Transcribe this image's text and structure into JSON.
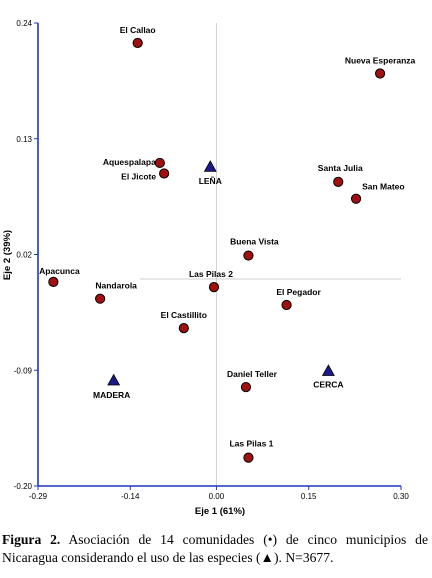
{
  "chart_data": {
    "type": "scatter",
    "xlabel": "Eje 1 (61%)",
    "ylabel": "Eje 2 (39%)",
    "xlim": [
      -0.29,
      0.3
    ],
    "ylim": [
      -0.2,
      0.24
    ],
    "xticks": [
      "-0.29",
      "-0.14",
      "0.00",
      "0.15",
      "0.30"
    ],
    "yticks": [
      "0.24",
      "0.13",
      "0.02",
      "-0.09",
      "-0.20"
    ],
    "series": [
      {
        "marker": "circle",
        "color": "#a01010",
        "points": [
          {
            "label": "El Callao",
            "x": -0.128,
            "y": 0.221
          },
          {
            "label": "Nueva Esperanza",
            "x": 0.266,
            "y": 0.192
          },
          {
            "label": "Aquespalapa",
            "x": -0.092,
            "y": 0.107
          },
          {
            "label": "El Jicote",
            "x": -0.085,
            "y": 0.097
          },
          {
            "label": "Santa Julia",
            "x": 0.198,
            "y": 0.089
          },
          {
            "label": "San Mateo",
            "x": 0.227,
            "y": 0.073
          },
          {
            "label": "Buena Vista",
            "x": 0.052,
            "y": 0.019
          },
          {
            "label": "Apacunca",
            "x": -0.265,
            "y": -0.006
          },
          {
            "label": "Las Pilas 2",
            "x": -0.004,
            "y": -0.011
          },
          {
            "label": "Nandarola",
            "x": -0.189,
            "y": -0.022
          },
          {
            "label": "El Pegador",
            "x": 0.114,
            "y": -0.028
          },
          {
            "label": "El Castillito",
            "x": -0.053,
            "y": -0.05
          },
          {
            "label": "Daniel Teller",
            "x": 0.048,
            "y": -0.106
          },
          {
            "label": "Las Pilas 1",
            "x": 0.052,
            "y": -0.173
          }
        ]
      },
      {
        "marker": "triangle",
        "color": "#1a1a8c",
        "points": [
          {
            "label": "LEÑA",
            "x": -0.01,
            "y": 0.103
          },
          {
            "label": "MADERA",
            "x": -0.167,
            "y": -0.1
          },
          {
            "label": "CERCA",
            "x": 0.182,
            "y": -0.091
          }
        ]
      }
    ]
  },
  "caption": {
    "figure_label": "Figura 2.",
    "text": " Asociación de 14 comunidades (•) de cinco municipios de Nicaragua considerando el uso de las especies (▲). N=3677."
  }
}
